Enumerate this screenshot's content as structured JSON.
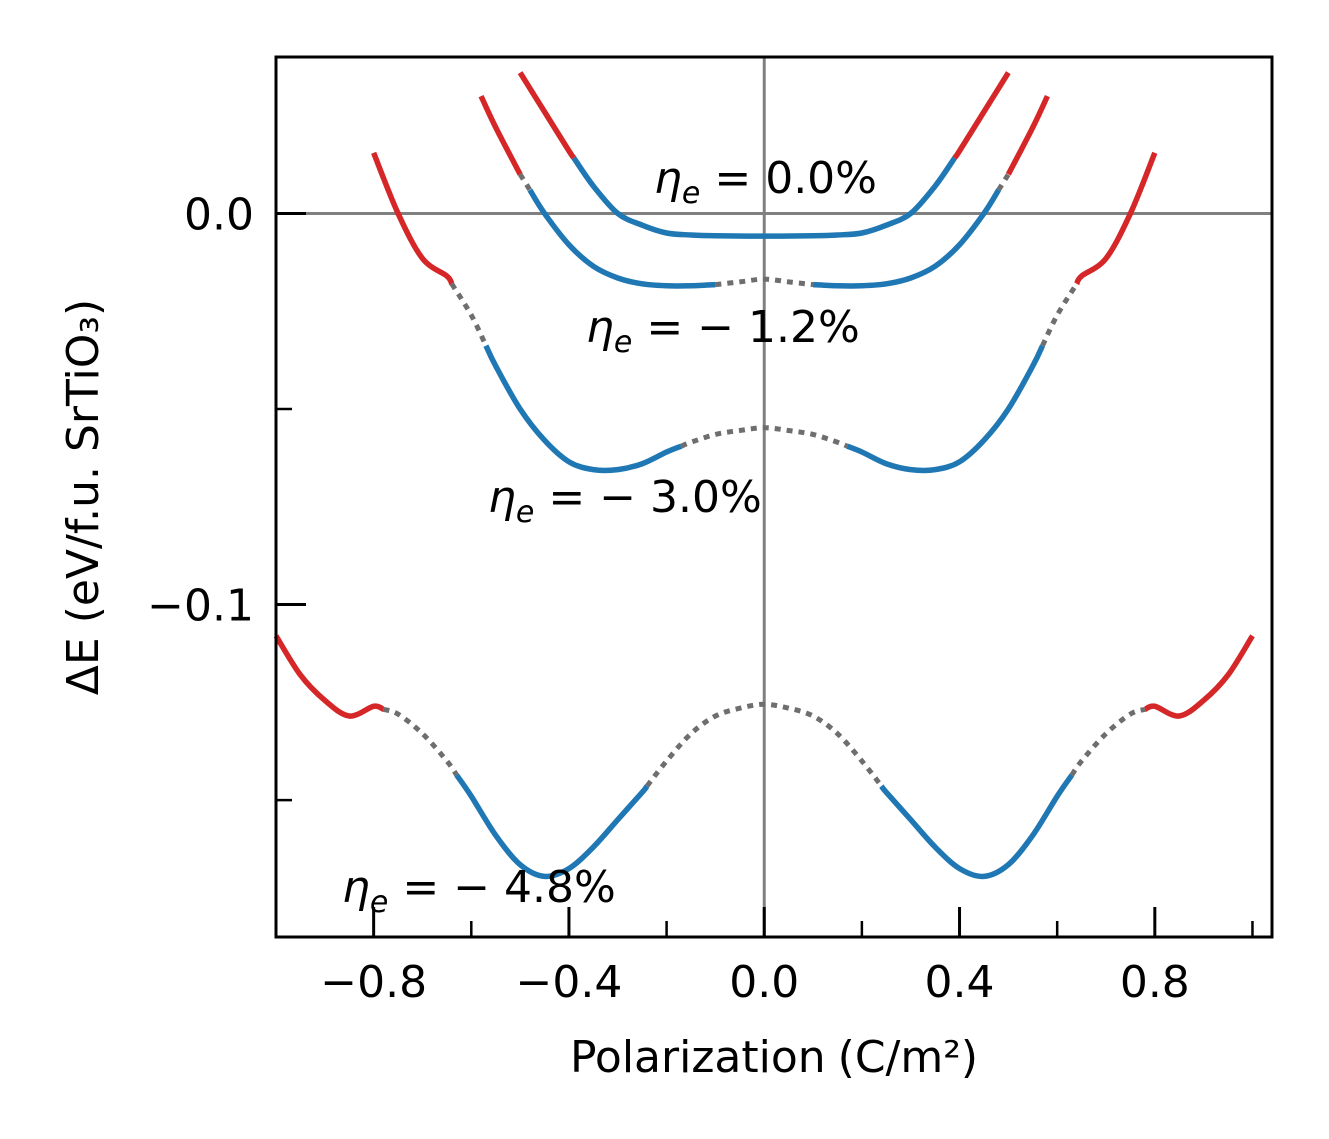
{
  "chart_data": {
    "type": "line",
    "xlabel": "Polarization",
    "xlabel_unit": "(C/m²)",
    "ylabel": "ΔE (eV/f.u. SrTiO₃)",
    "xlim": [
      -1.0,
      1.04
    ],
    "ylim": [
      -0.185,
      0.04
    ],
    "x_ticks": [
      -0.8,
      -0.4,
      0.0,
      0.4,
      0.8
    ],
    "x_tick_labels": [
      "−0.8",
      "−0.4",
      "0.0",
      "0.4",
      "0.8"
    ],
    "x_minor_ticks": [
      -1.0,
      -0.6,
      -0.2,
      0.2,
      0.6,
      1.0
    ],
    "y_ticks": [
      0.0,
      -0.1
    ],
    "y_tick_labels": [
      "0.0",
      "−0.1"
    ],
    "y_minor_ticks": [
      -0.05,
      -0.15
    ],
    "reference_lines": {
      "x": 0.0,
      "y": 0.0
    },
    "colors": {
      "stable": "#1f77b4",
      "high": "#d62728",
      "unstable": "#6e6e6e",
      "reference": "#808080"
    },
    "series": [
      {
        "name": "η_e = 0.0%",
        "label_prefix": "η",
        "label_sub": "e",
        "label_value": " = 0.0%",
        "points": [
          [
            -0.5,
            0.036
          ],
          [
            -0.45,
            0.026
          ],
          [
            -0.4,
            0.016
          ],
          [
            -0.35,
            0.007
          ],
          [
            -0.3,
            0.0
          ],
          [
            -0.25,
            -0.003
          ],
          [
            -0.2,
            -0.005
          ],
          [
            -0.15,
            -0.0055
          ],
          [
            -0.1,
            -0.0057
          ],
          [
            0.0,
            -0.0058
          ],
          [
            0.1,
            -0.0057
          ],
          [
            0.15,
            -0.0055
          ],
          [
            0.2,
            -0.005
          ],
          [
            0.25,
            -0.003
          ],
          [
            0.3,
            0.0
          ],
          [
            0.35,
            0.007
          ],
          [
            0.4,
            0.016
          ],
          [
            0.45,
            0.026
          ],
          [
            0.5,
            0.036
          ]
        ],
        "segments": [
          {
            "kind": "high",
            "range": [
              -0.5,
              -0.39
            ]
          },
          {
            "kind": "stable",
            "range": [
              -0.39,
              0.39
            ]
          },
          {
            "kind": "high",
            "range": [
              0.39,
              0.5
            ]
          }
        ]
      },
      {
        "name": "η_e = −1.2%",
        "label_prefix": "η",
        "label_sub": "e",
        "label_value": " = − 1.2%",
        "points": [
          [
            -0.58,
            0.03
          ],
          [
            -0.55,
            0.022
          ],
          [
            -0.5,
            0.01
          ],
          [
            -0.45,
            0.0
          ],
          [
            -0.4,
            -0.008
          ],
          [
            -0.35,
            -0.0135
          ],
          [
            -0.3,
            -0.0165
          ],
          [
            -0.25,
            -0.018
          ],
          [
            -0.2,
            -0.0185
          ],
          [
            -0.15,
            -0.0185
          ],
          [
            -0.1,
            -0.0182
          ],
          [
            -0.05,
            -0.0175
          ],
          [
            0.0,
            -0.0168
          ],
          [
            0.05,
            -0.0175
          ],
          [
            0.1,
            -0.0182
          ],
          [
            0.15,
            -0.0185
          ],
          [
            0.2,
            -0.0185
          ],
          [
            0.25,
            -0.018
          ],
          [
            0.3,
            -0.0165
          ],
          [
            0.35,
            -0.0135
          ],
          [
            0.4,
            -0.008
          ],
          [
            0.45,
            0.0
          ],
          [
            0.5,
            0.01
          ],
          [
            0.55,
            0.022
          ],
          [
            0.58,
            0.03
          ]
        ],
        "segments": [
          {
            "kind": "high",
            "range": [
              -0.58,
              -0.5
            ]
          },
          {
            "kind": "unstable",
            "range": [
              -0.5,
              -0.48
            ]
          },
          {
            "kind": "stable",
            "range": [
              -0.48,
              -0.1
            ]
          },
          {
            "kind": "unstable",
            "range": [
              -0.1,
              0.1
            ]
          },
          {
            "kind": "stable",
            "range": [
              0.1,
              0.48
            ]
          },
          {
            "kind": "unstable",
            "range": [
              0.48,
              0.5
            ]
          },
          {
            "kind": "high",
            "range": [
              0.5,
              0.58
            ]
          }
        ]
      },
      {
        "name": "η_e = −3.0%",
        "label_prefix": "η",
        "label_sub": "e",
        "label_value": " = − 3.0%",
        "points": [
          [
            -0.8,
            0.0155
          ],
          [
            -0.75,
            0.0
          ],
          [
            -0.7,
            -0.0115
          ],
          [
            -0.65,
            -0.016
          ],
          [
            -0.6,
            -0.026
          ],
          [
            -0.55,
            -0.039
          ],
          [
            -0.5,
            -0.05
          ],
          [
            -0.45,
            -0.058
          ],
          [
            -0.4,
            -0.0635
          ],
          [
            -0.35,
            -0.0655
          ],
          [
            -0.3,
            -0.0655
          ],
          [
            -0.25,
            -0.064
          ],
          [
            -0.2,
            -0.061
          ],
          [
            -0.15,
            -0.0585
          ],
          [
            -0.1,
            -0.0565
          ],
          [
            -0.05,
            -0.0555
          ],
          [
            0.0,
            -0.0548
          ],
          [
            0.05,
            -0.0555
          ],
          [
            0.1,
            -0.0565
          ],
          [
            0.15,
            -0.0585
          ],
          [
            0.2,
            -0.061
          ],
          [
            0.25,
            -0.064
          ],
          [
            0.3,
            -0.0655
          ],
          [
            0.35,
            -0.0655
          ],
          [
            0.4,
            -0.0635
          ],
          [
            0.45,
            -0.058
          ],
          [
            0.5,
            -0.05
          ],
          [
            0.55,
            -0.039
          ],
          [
            0.6,
            -0.026
          ],
          [
            0.65,
            -0.016
          ],
          [
            0.7,
            -0.0115
          ],
          [
            0.75,
            0.0
          ],
          [
            0.8,
            0.0155
          ]
        ],
        "segments": [
          {
            "kind": "high",
            "range": [
              -0.8,
              -0.64
            ]
          },
          {
            "kind": "unstable",
            "range": [
              -0.64,
              -0.57
            ]
          },
          {
            "kind": "stable",
            "range": [
              -0.57,
              -0.17
            ]
          },
          {
            "kind": "unstable",
            "range": [
              -0.17,
              0.17
            ]
          },
          {
            "kind": "stable",
            "range": [
              0.17,
              0.57
            ]
          },
          {
            "kind": "unstable",
            "range": [
              0.57,
              0.64
            ]
          },
          {
            "kind": "high",
            "range": [
              0.64,
              0.8
            ]
          }
        ]
      },
      {
        "name": "η_e = −4.8%",
        "label_prefix": "η",
        "label_sub": "e",
        "label_value": " = − 4.8%",
        "points": [
          [
            -1.0,
            -0.108
          ],
          [
            -0.95,
            -0.118
          ],
          [
            -0.9,
            -0.1245
          ],
          [
            -0.85,
            -0.1285
          ],
          [
            -0.8,
            -0.126
          ],
          [
            -0.75,
            -0.128
          ],
          [
            -0.7,
            -0.133
          ],
          [
            -0.65,
            -0.14
          ],
          [
            -0.6,
            -0.149
          ],
          [
            -0.55,
            -0.159
          ],
          [
            -0.5,
            -0.1665
          ],
          [
            -0.45,
            -0.1695
          ],
          [
            -0.4,
            -0.1675
          ],
          [
            -0.35,
            -0.162
          ],
          [
            -0.3,
            -0.155
          ],
          [
            -0.25,
            -0.148
          ],
          [
            -0.2,
            -0.14
          ],
          [
            -0.15,
            -0.133
          ],
          [
            -0.1,
            -0.1285
          ],
          [
            -0.05,
            -0.1265
          ],
          [
            0.0,
            -0.1255
          ],
          [
            0.05,
            -0.1265
          ],
          [
            0.1,
            -0.1285
          ],
          [
            0.15,
            -0.133
          ],
          [
            0.2,
            -0.14
          ],
          [
            0.25,
            -0.148
          ],
          [
            0.3,
            -0.155
          ],
          [
            0.35,
            -0.162
          ],
          [
            0.4,
            -0.1675
          ],
          [
            0.45,
            -0.1695
          ],
          [
            0.5,
            -0.1665
          ],
          [
            0.55,
            -0.159
          ],
          [
            0.6,
            -0.149
          ],
          [
            0.65,
            -0.14
          ],
          [
            0.7,
            -0.133
          ],
          [
            0.75,
            -0.128
          ],
          [
            0.8,
            -0.126
          ],
          [
            0.85,
            -0.1285
          ],
          [
            0.9,
            -0.1245
          ],
          [
            0.95,
            -0.118
          ],
          [
            1.0,
            -0.108
          ]
        ],
        "segments": [
          {
            "kind": "high",
            "range": [
              -1.0,
              -0.78
            ]
          },
          {
            "kind": "unstable",
            "range": [
              -0.78,
              -0.63
            ]
          },
          {
            "kind": "stable",
            "range": [
              -0.63,
              -0.24
            ]
          },
          {
            "kind": "unstable",
            "range": [
              -0.24,
              0.24
            ]
          },
          {
            "kind": "stable",
            "range": [
              0.24,
              0.63
            ]
          },
          {
            "kind": "unstable",
            "range": [
              0.63,
              0.78
            ]
          },
          {
            "kind": "high",
            "range": [
              0.78,
              1.0
            ]
          }
        ]
      }
    ]
  }
}
